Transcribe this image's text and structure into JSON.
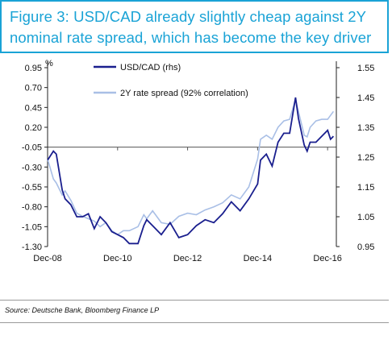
{
  "figure": {
    "title": "Figure 3: USD/CAD already slightly cheap against 2Y nominal rate spread, which has become the key driver",
    "source": "Source: Deutsche Bank, Bloomberg Finance LP"
  },
  "chart_data": {
    "type": "line",
    "left_axis": {
      "unit_label": "%",
      "range": [
        -1.3,
        0.95
      ],
      "ticks": [
        "0.95",
        "0.70",
        "0.45",
        "0.20",
        "-0.05",
        "-0.30",
        "-0.55",
        "-0.80",
        "-1.05",
        "-1.30"
      ],
      "tick_values": [
        0.95,
        0.7,
        0.45,
        0.2,
        -0.05,
        -0.3,
        -0.55,
        -0.8,
        -1.05,
        -1.3
      ]
    },
    "right_axis": {
      "range": [
        0.95,
        1.55
      ],
      "ticks": [
        "1.55",
        "1.45",
        "1.35",
        "1.25",
        "1.15",
        "1.05",
        "0.95"
      ],
      "tick_values": [
        1.55,
        1.45,
        1.35,
        1.25,
        1.15,
        1.05,
        0.95
      ]
    },
    "x_axis": {
      "range": [
        "2008-12",
        "2017-03"
      ],
      "tick_labels": [
        "Dec-08",
        "Dec-10",
        "Dec-12",
        "Dec-14",
        "Dec-16"
      ],
      "tick_values": [
        "2008-12",
        "2010-12",
        "2012-12",
        "2014-12",
        "2016-12"
      ]
    },
    "zero_line_value": -0.05,
    "series": [
      {
        "name": "USD/CAD (rhs)",
        "axis": "right",
        "color": "#1a1f8e",
        "points": [
          [
            "2008-12",
            1.24
          ],
          [
            "2009-02",
            1.27
          ],
          [
            "2009-03",
            1.26
          ],
          [
            "2009-05",
            1.14
          ],
          [
            "2009-06",
            1.11
          ],
          [
            "2009-08",
            1.09
          ],
          [
            "2009-10",
            1.05
          ],
          [
            "2009-12",
            1.05
          ],
          [
            "2010-02",
            1.06
          ],
          [
            "2010-04",
            1.01
          ],
          [
            "2010-06",
            1.05
          ],
          [
            "2010-08",
            1.03
          ],
          [
            "2010-10",
            1.0
          ],
          [
            "2010-12",
            0.99
          ],
          [
            "2011-02",
            0.98
          ],
          [
            "2011-04",
            0.96
          ],
          [
            "2011-07",
            0.96
          ],
          [
            "2011-09",
            1.02
          ],
          [
            "2011-10",
            1.04
          ],
          [
            "2011-12",
            1.02
          ],
          [
            "2012-03",
            0.99
          ],
          [
            "2012-06",
            1.03
          ],
          [
            "2012-09",
            0.98
          ],
          [
            "2012-12",
            0.99
          ],
          [
            "2013-03",
            1.02
          ],
          [
            "2013-06",
            1.04
          ],
          [
            "2013-09",
            1.03
          ],
          [
            "2013-12",
            1.06
          ],
          [
            "2014-03",
            1.1
          ],
          [
            "2014-06",
            1.07
          ],
          [
            "2014-09",
            1.11
          ],
          [
            "2014-12",
            1.16
          ],
          [
            "2015-01",
            1.24
          ],
          [
            "2015-03",
            1.26
          ],
          [
            "2015-05",
            1.22
          ],
          [
            "2015-07",
            1.3
          ],
          [
            "2015-09",
            1.33
          ],
          [
            "2015-11",
            1.33
          ],
          [
            "2016-01",
            1.45
          ],
          [
            "2016-02",
            1.38
          ],
          [
            "2016-04",
            1.29
          ],
          [
            "2016-05",
            1.27
          ],
          [
            "2016-06",
            1.3
          ],
          [
            "2016-08",
            1.3
          ],
          [
            "2016-10",
            1.32
          ],
          [
            "2016-12",
            1.34
          ],
          [
            "2017-01",
            1.31
          ],
          [
            "2017-02",
            1.32
          ]
        ]
      },
      {
        "name": "2Y rate spread (92% correlation)",
        "axis": "left",
        "color": "#a9bfe6",
        "points": [
          [
            "2008-12",
            -0.2
          ],
          [
            "2009-02",
            -0.45
          ],
          [
            "2009-03",
            -0.5
          ],
          [
            "2009-05",
            -0.65
          ],
          [
            "2009-06",
            -0.6
          ],
          [
            "2009-08",
            -0.72
          ],
          [
            "2009-10",
            -0.88
          ],
          [
            "2009-12",
            -0.92
          ],
          [
            "2010-02",
            -0.95
          ],
          [
            "2010-04",
            -0.98
          ],
          [
            "2010-06",
            -1.05
          ],
          [
            "2010-08",
            -1.0
          ],
          [
            "2010-10",
            -1.1
          ],
          [
            "2010-12",
            -1.15
          ],
          [
            "2011-02",
            -1.1
          ],
          [
            "2011-04",
            -1.1
          ],
          [
            "2011-07",
            -1.05
          ],
          [
            "2011-09",
            -0.9
          ],
          [
            "2011-10",
            -0.95
          ],
          [
            "2011-12",
            -0.85
          ],
          [
            "2012-03",
            -1.0
          ],
          [
            "2012-06",
            -1.02
          ],
          [
            "2012-09",
            -0.92
          ],
          [
            "2012-12",
            -0.88
          ],
          [
            "2013-03",
            -0.9
          ],
          [
            "2013-06",
            -0.84
          ],
          [
            "2013-09",
            -0.8
          ],
          [
            "2013-12",
            -0.75
          ],
          [
            "2014-03",
            -0.65
          ],
          [
            "2014-06",
            -0.7
          ],
          [
            "2014-09",
            -0.55
          ],
          [
            "2014-12",
            -0.2
          ],
          [
            "2015-01",
            0.05
          ],
          [
            "2015-03",
            0.1
          ],
          [
            "2015-05",
            0.05
          ],
          [
            "2015-07",
            0.2
          ],
          [
            "2015-09",
            0.28
          ],
          [
            "2015-11",
            0.3
          ],
          [
            "2016-01",
            0.55
          ],
          [
            "2016-02",
            0.4
          ],
          [
            "2016-04",
            0.1
          ],
          [
            "2016-05",
            0.08
          ],
          [
            "2016-06",
            0.2
          ],
          [
            "2016-08",
            0.28
          ],
          [
            "2016-10",
            0.3
          ],
          [
            "2016-12",
            0.3
          ],
          [
            "2017-01",
            0.35
          ],
          [
            "2017-02",
            0.4
          ]
        ]
      }
    ],
    "legend_position": "top-left",
    "grid": false
  }
}
